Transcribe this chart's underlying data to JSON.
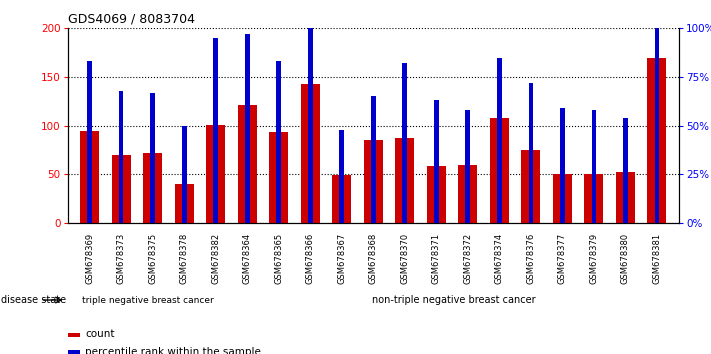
{
  "title": "GDS4069 / 8083704",
  "samples": [
    "GSM678369",
    "GSM678373",
    "GSM678375",
    "GSM678378",
    "GSM678382",
    "GSM678364",
    "GSM678365",
    "GSM678366",
    "GSM678367",
    "GSM678368",
    "GSM678370",
    "GSM678371",
    "GSM678372",
    "GSM678374",
    "GSM678376",
    "GSM678377",
    "GSM678379",
    "GSM678380",
    "GSM678381"
  ],
  "counts": [
    95,
    70,
    72,
    40,
    101,
    121,
    93,
    143,
    49,
    85,
    87,
    59,
    60,
    108,
    75,
    50,
    50,
    52,
    170
  ],
  "percentiles": [
    83,
    68,
    67,
    50,
    95,
    97,
    83,
    100,
    48,
    65,
    82,
    63,
    58,
    85,
    72,
    59,
    58,
    54,
    110
  ],
  "group1_count": 5,
  "group1_label": "triple negative breast cancer",
  "group2_label": "non-triple negative breast cancer",
  "bar_color_red": "#cc0000",
  "bar_color_blue": "#0000cc",
  "ylim_left": [
    0,
    200
  ],
  "ylim_right": [
    0,
    100
  ],
  "yticks_left": [
    0,
    50,
    100,
    150,
    200
  ],
  "yticks_right": [
    0,
    25,
    50,
    75,
    100
  ],
  "group_bg_color1": "#c8c8c8",
  "group_bg_color2": "#66cc66",
  "legend_label1": "count",
  "legend_label2": "percentile rank within the sample",
  "disease_state_label": "disease state"
}
